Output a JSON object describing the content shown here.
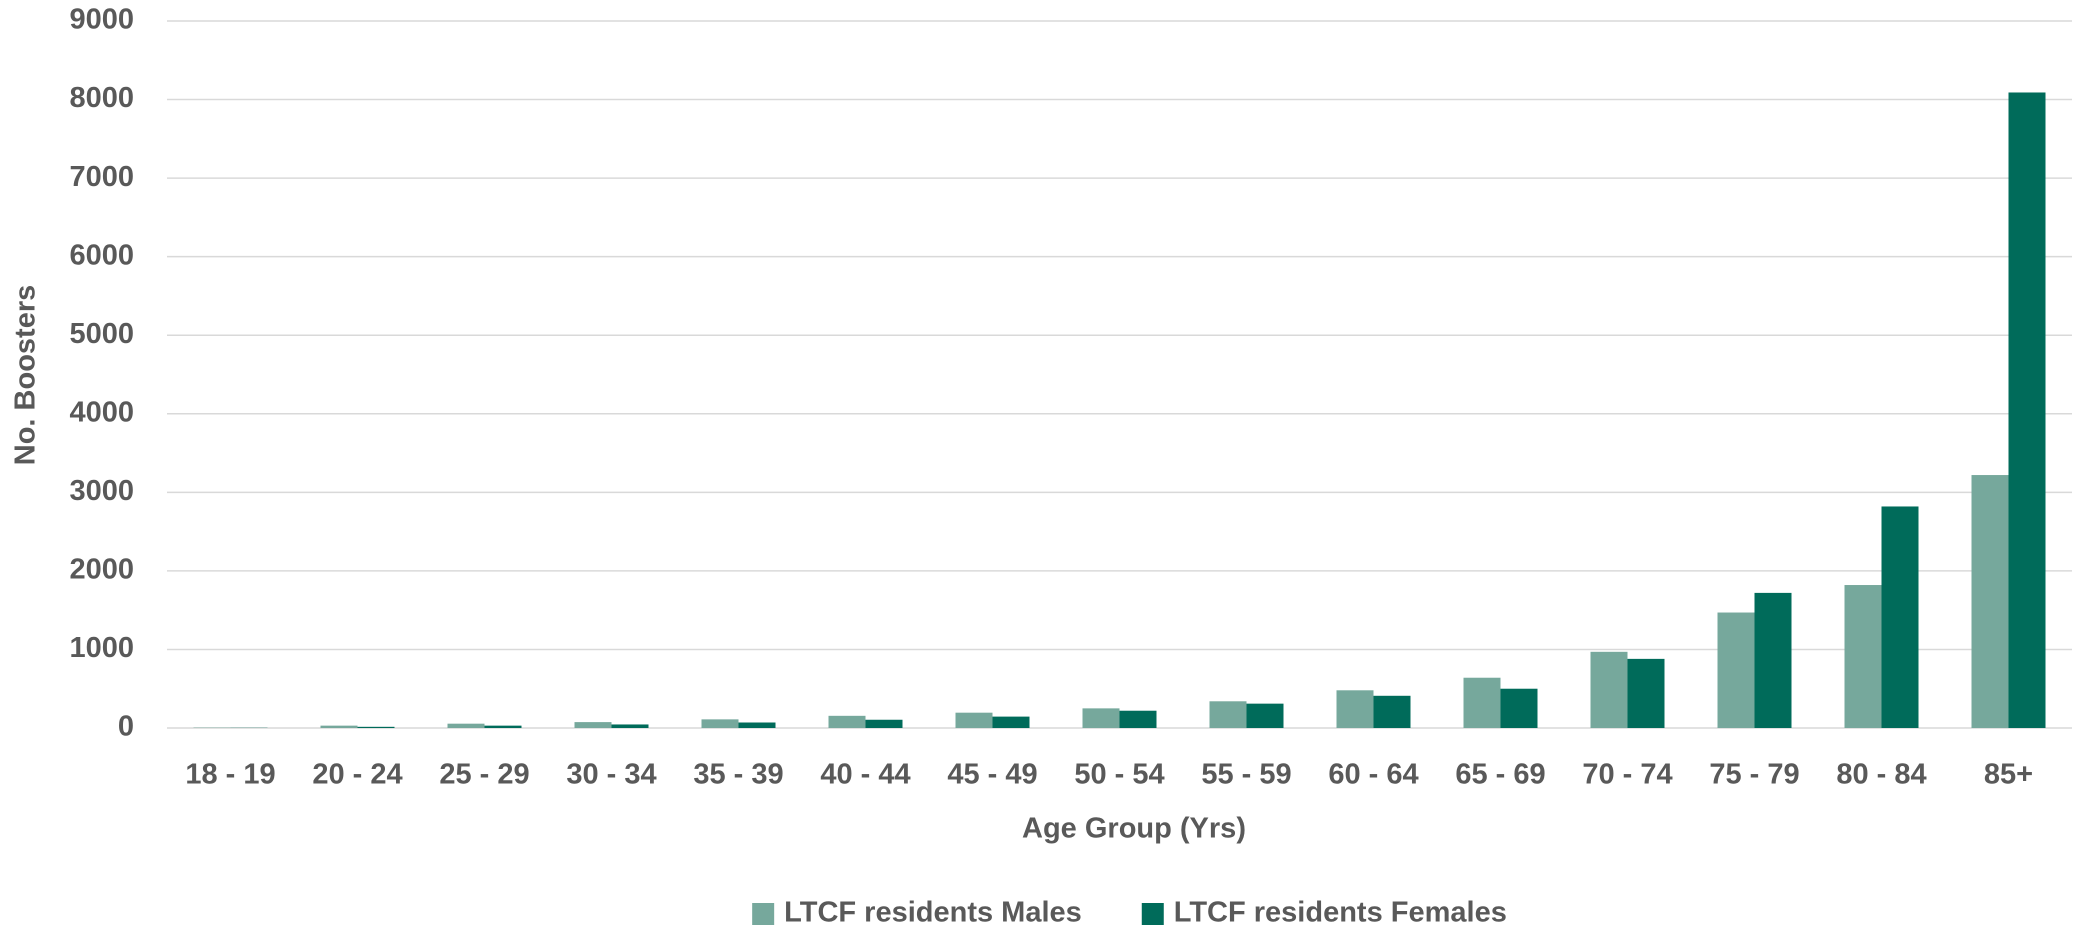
{
  "chart_data": {
    "type": "bar",
    "x_label": "Age Group (Yrs)",
    "y_label": "No. Boosters",
    "categories": [
      "18 - 19",
      "20 - 24",
      "25 - 29",
      "30 - 34",
      "35 - 39",
      "40 - 44",
      "45 - 49",
      "50 - 54",
      "55 - 59",
      "60 - 64",
      "65 - 69",
      "70 - 74",
      "75 - 79",
      "80 - 84",
      "85+"
    ],
    "series": [
      {
        "name": "LTCF residents Males",
        "color": "#76a89c",
        "values": [
          5,
          30,
          55,
          75,
          110,
          155,
          195,
          250,
          340,
          480,
          640,
          970,
          1470,
          1820,
          3220
        ]
      },
      {
        "name": "LTCF residents Females",
        "color": "#006b5a",
        "values": [
          3,
          15,
          30,
          45,
          70,
          105,
          145,
          220,
          310,
          410,
          500,
          880,
          1720,
          2820,
          8090
        ]
      }
    ],
    "ylim": [
      0,
      9000
    ],
    "yticks": [
      0,
      1000,
      2000,
      3000,
      4000,
      5000,
      6000,
      7000,
      8000,
      9000
    ],
    "grid": true,
    "legend": "bottom"
  }
}
